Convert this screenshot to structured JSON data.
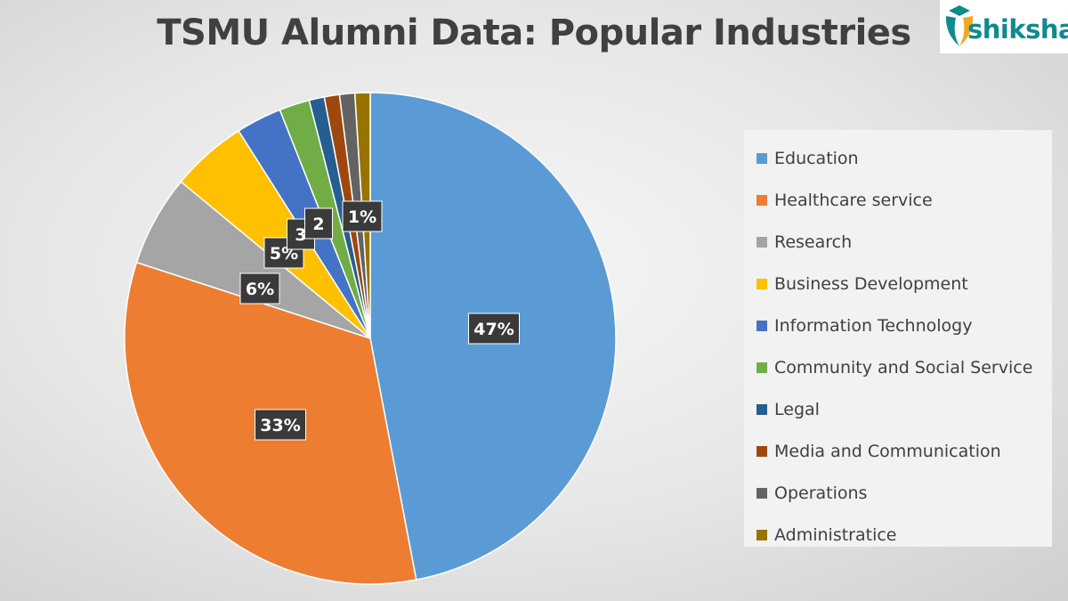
{
  "logo": {
    "text": "shiksha"
  },
  "chart_data": {
    "type": "pie",
    "title": "TSMU Alumni Data: Popular Industries",
    "legend_position": "right",
    "slices": [
      {
        "label": "Education",
        "value": 47,
        "data_label": "47%",
        "color": "#5b9bd5"
      },
      {
        "label": "Healthcare service",
        "value": 33,
        "data_label": "33%",
        "color": "#ed7d31"
      },
      {
        "label": "Research",
        "value": 6,
        "data_label": "6%",
        "color": "#a5a5a5"
      },
      {
        "label": "Business Development",
        "value": 5,
        "data_label": "5%",
        "color": "#ffc000"
      },
      {
        "label": "Information Technology",
        "value": 3,
        "data_label": "3",
        "color": "#4472c4"
      },
      {
        "label": "Community and Social Service",
        "value": 2,
        "data_label": "2",
        "color": "#70ad47"
      },
      {
        "label": "Legal",
        "value": 1,
        "data_label": "",
        "color": "#255e91"
      },
      {
        "label": "Media and Communication",
        "value": 1,
        "data_label": "",
        "color": "#9e480e"
      },
      {
        "label": "Operations",
        "value": 1,
        "data_label": "",
        "color": "#636363"
      },
      {
        "label": "Administratice",
        "value": 1,
        "data_label": "1%",
        "color": "#997300"
      }
    ]
  }
}
